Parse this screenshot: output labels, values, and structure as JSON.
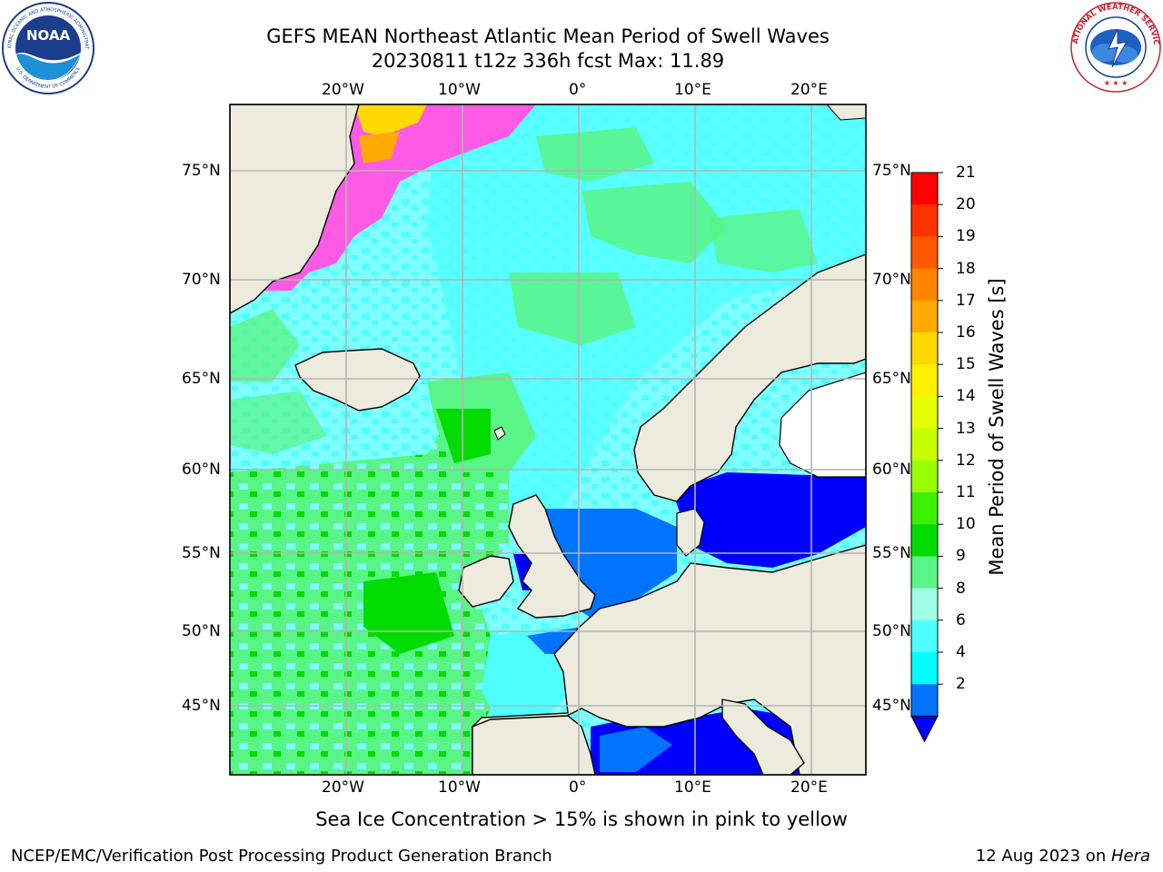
{
  "header": {
    "title_line1": "GEFS MEAN Northeast Atlantic Mean Period of Swell Waves",
    "title_line2": "20230811 t12z 336h fcst   Max: 11.89"
  },
  "logos": {
    "left": "noaa-logo",
    "right": "nws-logo",
    "left_ring_text": "NATIONAL OCEANIC AND ATMOSPHERIC ADMINISTRATION",
    "left_ring_text_bottom": "U.S. DEPARTMENT OF COMMERCE",
    "left_center_text": "NOAA",
    "right_ring_text": "NATIONAL WEATHER SERVICE"
  },
  "map": {
    "lon_labels": [
      "20°W",
      "10°W",
      "0°",
      "10°E",
      "20°E"
    ],
    "lat_labels": [
      "75°N",
      "70°N",
      "65°N",
      "60°N",
      "55°N",
      "50°N",
      "45°N"
    ],
    "colors": {
      "land": "#ecebdd",
      "ocean_fill_a": "#7fffff",
      "ocean_fill_b": "#4dffff",
      "ocean_fill_c": "#59f587",
      "blue_shallow": "#0000ff",
      "blue_mid": "#0074ff",
      "ice_pink": "#ff5ae6",
      "ice_yellow": "#fff200",
      "grid": "#b4b4b4"
    }
  },
  "colorbar": {
    "title": "Mean Period of Swell Waves [s]",
    "ticks": [
      "21",
      "20",
      "19",
      "18",
      "17",
      "16",
      "15",
      "14",
      "13",
      "12",
      "11",
      "10",
      "9",
      "8",
      "6",
      "4",
      "2"
    ],
    "colors": [
      "#ff0000",
      "#ff3300",
      "#ff5a00",
      "#ff8400",
      "#ffaa00",
      "#ffd800",
      "#fff000",
      "#e6ff00",
      "#c8ff00",
      "#99ff00",
      "#3cf000",
      "#00dc00",
      "#59f587",
      "#a0ffe6",
      "#4dffff",
      "#00ffff",
      "#0074ff"
    ],
    "extend_color": "#0000ff"
  },
  "note": "Sea Ice Concentration > 15% is shown in pink to yellow",
  "footer": {
    "left": "NCEP/EMC/Verification Post Processing Product Generation Branch",
    "right_date": "12 Aug 2023 on ",
    "right_machine": "Hera"
  }
}
